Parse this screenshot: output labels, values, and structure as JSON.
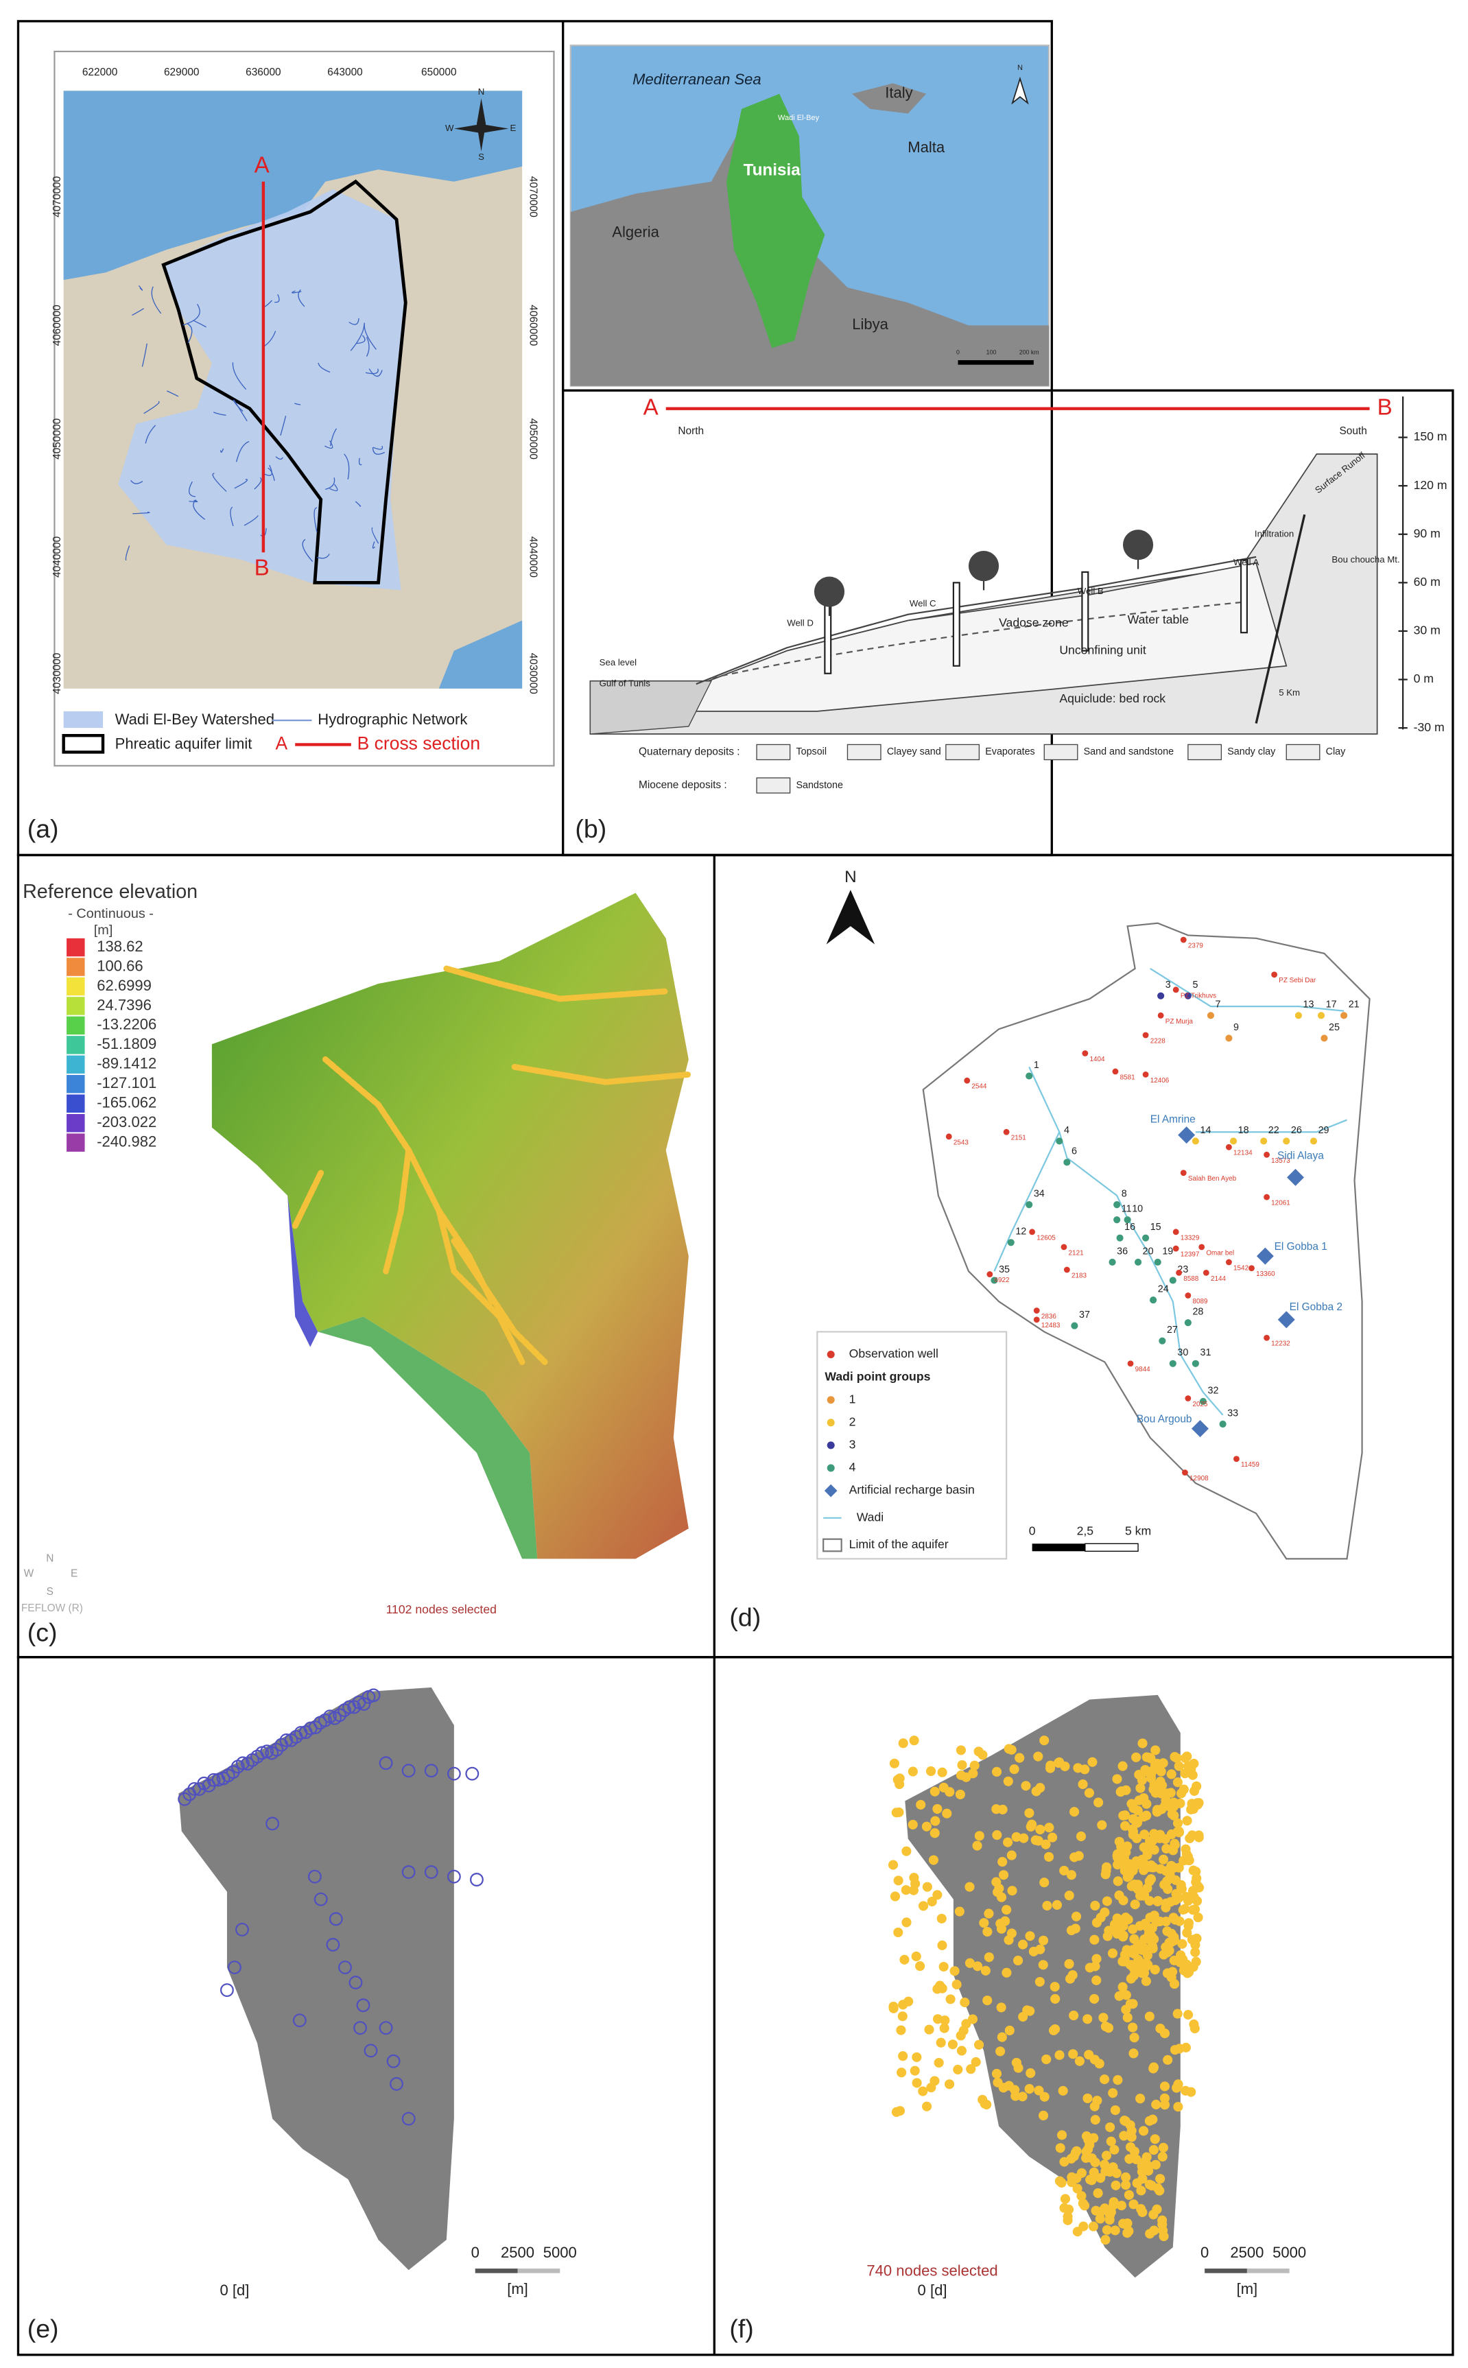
{
  "panel_a": {
    "label": "(a)",
    "x_ticks": [
      622000,
      629000,
      636000,
      643000,
      650000
    ],
    "y_ticks": [
      4070000,
      4060000,
      4050000,
      4040000,
      4030000
    ],
    "section_start": "A",
    "section_end": "B",
    "compass": [
      "N",
      "E",
      "S",
      "W"
    ],
    "legend": {
      "watershed": "Wadi El-Bey Watershed",
      "network": "Hydrographic Network",
      "aquifer": "Phreatic aquifer limit",
      "section_a": "A",
      "section_b": "B cross section"
    }
  },
  "inset": {
    "labels": [
      "Mediterranean Sea",
      "Italy",
      "Malta",
      "Tunisia",
      "Algeria",
      "Libya",
      "Wadi El-Bey"
    ],
    "north": "N",
    "scale": [
      "0",
      "100",
      "200 km"
    ]
  },
  "panel_b": {
    "label": "(b)",
    "section_start": "A",
    "section_end": "B",
    "north": "North",
    "south": "South",
    "elevations": [
      "150 m",
      "120 m",
      "90 m",
      "60 m",
      "30 m",
      "0 m",
      "-30 m"
    ],
    "annotations": [
      "Infiltration",
      "Surface Runoff",
      "Bou choucha Mt.",
      "Well A",
      "Well B",
      "Well C",
      "Well D",
      "Vadose zone",
      "Water table",
      "Unconfining unit",
      "Aquiclude: bed rock",
      "Sea level",
      "Gulf of Tunis",
      "5 Km"
    ],
    "legend": {
      "quaternary": "Quaternary deposits :",
      "quaternary_items": [
        "Topsoil",
        "Clayey sand",
        "Evaporates",
        "Sand and sandstone",
        "Sandy clay",
        "Clay"
      ],
      "miocene": "Miocene deposits :",
      "miocene_items": [
        "Sandstone"
      ]
    }
  },
  "panel_c": {
    "label": "(c)",
    "legend_title": "Reference elevation",
    "legend_subtitle": "- Continuous -",
    "legend_unit": "[m]",
    "legend_values": [
      138.62,
      100.66,
      62.6999,
      24.7396,
      -13.2206,
      -51.1809,
      -89.1412,
      -127.101,
      -165.062,
      -203.022,
      -240.982
    ],
    "legend_colors": [
      "#e8303a",
      "#f08a3c",
      "#f2e23a",
      "#b8e03a",
      "#58d04a",
      "#3ec89a",
      "#3cb4d2",
      "#3c84d8",
      "#3a4ed0",
      "#6a3cc8",
      "#9a3ca8"
    ],
    "compass": [
      "N",
      "E",
      "S",
      "W"
    ],
    "software": "FEFLOW (R)",
    "status": "1102 nodes selected"
  },
  "panel_d": {
    "label": "(d)",
    "north": "N",
    "wadi_points": [
      "1",
      "3",
      "5",
      "7",
      "9",
      "13",
      "17",
      "21",
      "25",
      "4",
      "6",
      "8",
      "10",
      "11",
      "12",
      "14",
      "18",
      "22",
      "26",
      "29",
      "15",
      "16",
      "19",
      "20",
      "23",
      "24",
      "27",
      "28",
      "30",
      "31",
      "32",
      "33",
      "34",
      "35",
      "36",
      "37"
    ],
    "wells": [
      "2379",
      "PZ Trikhuvs",
      "PZ Sebi Dar",
      "PZ Murja",
      "2228",
      "1404",
      "8581",
      "12406",
      "2544",
      "2151",
      "2543",
      "12134",
      "13573",
      "Salah Ben Ayeb",
      "12061",
      "13329",
      "12605",
      "2121",
      "2183",
      "12397",
      "Omar bel",
      "8588",
      "2144",
      "1542",
      "13360",
      "8089",
      "2836",
      "12483",
      "6922",
      "9844",
      "12232",
      "2025",
      "12908",
      "11459"
    ],
    "basins": [
      "El Amrine",
      "Sidi Alaya",
      "El Gobba 1",
      "El Gobba 2",
      "Bou Argoub"
    ],
    "legend": {
      "observation_well": "Observation well",
      "groups_title": "Wadi point groups",
      "groups": [
        {
          "label": "1",
          "color": "#e8963c"
        },
        {
          "label": "2",
          "color": "#f1c232"
        },
        {
          "label": "3",
          "color": "#3a3a9a"
        },
        {
          "label": "4",
          "color": "#3d9a7a"
        }
      ],
      "basin": "Artificial recharge basin",
      "wadi": "Wadi",
      "limit": "Limit of the aquifer"
    },
    "scale": [
      "0",
      "2,5",
      "5 km"
    ]
  },
  "panel_e": {
    "label": "(e)",
    "scale": [
      0,
      2500,
      5000
    ],
    "unit": "[m]",
    "time": "0 [d]"
  },
  "panel_f": {
    "label": "(f)",
    "status": "740 nodes selected",
    "scale": [
      0,
      2500,
      5000
    ],
    "unit": "[m]",
    "time": "0 [d]"
  }
}
